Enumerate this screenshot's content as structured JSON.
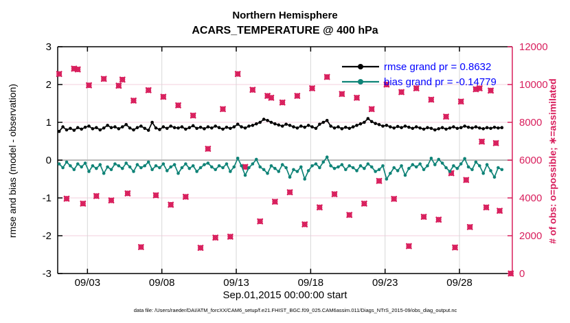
{
  "figure": {
    "footer": "data file: /Users/raeder/DAI/ATM_forcXX/CAM6_setup/f.e21.FHIST_BGC.f09_025.CAM6assim.011/Diags_NTrS_2015-09/obs_diag_output.nc"
  },
  "colors": {
    "rmse": "#000000",
    "bias": "#0f8377",
    "obs": "#d81e5c",
    "legend_text": "#0000ff",
    "grid_vertical": "#d7d7d7",
    "grid_horizontal": "#f3cfdd",
    "zero_line": "#b8b8b8",
    "axis_black": "#000000"
  },
  "chart_data": {
    "type": "line",
    "title": "Northern Hemisphere",
    "subtitle": "ACARS_TEMPERATURE @ 400 hPa",
    "xlabel": "Sep.01,2015 00:00:00 start",
    "ylabel_left": "rmse and bias (model - observation)",
    "ylabel_right": "# of obs: o=possible; ∗=assimilated",
    "x_axis": {
      "start_day": 0,
      "end_day": 30.55,
      "ticks": [
        {
          "day": 2,
          "label": "09/03"
        },
        {
          "day": 7,
          "label": "09/08"
        },
        {
          "day": 12,
          "label": "09/13"
        },
        {
          "day": 17,
          "label": "09/18"
        },
        {
          "day": 22,
          "label": "09/23"
        },
        {
          "day": 27,
          "label": "09/28"
        }
      ]
    },
    "y_left": {
      "min": -3,
      "max": 3,
      "ticks": [
        3,
        2,
        1,
        0,
        -1,
        -2,
        -3
      ]
    },
    "y_right": {
      "min": 0,
      "max": 12000,
      "ticks": [
        0,
        2000,
        4000,
        6000,
        8000,
        10000,
        12000
      ]
    },
    "grand_means": {
      "rmse": 0.8632,
      "bias": -0.14779
    },
    "legend": [
      {
        "label": "rmse grand pr = 0.8632",
        "series": "rmse"
      },
      {
        "label": "bias grand pr = -0.14779",
        "series": "bias"
      }
    ],
    "series": {
      "rmse": {
        "axis": "left",
        "x_start": 0.1,
        "x_step": 0.25,
        "values": [
          0.76,
          0.88,
          0.8,
          0.84,
          0.79,
          0.86,
          0.82,
          0.87,
          0.9,
          0.83,
          0.86,
          0.8,
          0.85,
          0.92,
          0.86,
          0.88,
          0.83,
          0.88,
          0.94,
          0.85,
          0.8,
          0.86,
          0.9,
          0.84,
          0.79,
          1.0,
          0.85,
          0.81,
          0.88,
          0.84,
          0.9,
          0.86,
          0.85,
          0.88,
          0.82,
          0.86,
          0.91,
          0.84,
          0.87,
          0.83,
          0.88,
          0.85,
          0.9,
          0.86,
          0.82,
          0.87,
          0.84,
          0.88,
          0.95,
          0.88,
          0.85,
          0.9,
          0.92,
          0.96,
          1.0,
          1.08,
          1.05,
          1.0,
          0.96,
          0.93,
          0.9,
          0.95,
          0.92,
          0.88,
          0.85,
          0.9,
          0.87,
          0.92,
          0.88,
          0.84,
          0.95,
          1.0,
          1.05,
          0.9,
          0.85,
          0.88,
          0.83,
          0.87,
          0.84,
          0.88,
          0.92,
          0.96,
          1.0,
          1.1,
          1.02,
          0.97,
          0.94,
          0.9,
          0.92,
          0.88,
          0.85,
          0.89,
          0.86,
          0.9,
          0.87,
          0.84,
          0.88,
          0.85,
          0.82,
          0.86,
          0.84,
          0.8,
          0.83,
          0.86,
          0.82,
          0.85,
          0.88,
          0.84,
          0.86,
          0.9,
          0.87,
          0.85,
          0.88,
          0.85,
          0.83,
          0.86,
          0.84,
          0.87,
          0.85,
          0.86
        ]
      },
      "bias": {
        "axis": "left",
        "x_start": 0.1,
        "x_step": 0.25,
        "values": [
          -0.1,
          -0.2,
          -0.05,
          -0.15,
          -0.25,
          -0.1,
          -0.18,
          -0.08,
          -0.3,
          -0.15,
          -0.22,
          -0.12,
          -0.35,
          -0.18,
          -0.25,
          -0.1,
          -0.15,
          -0.22,
          -0.08,
          -0.18,
          -0.3,
          -0.12,
          -0.2,
          -0.15,
          -0.05,
          -0.25,
          -0.15,
          -0.2,
          -0.1,
          -0.28,
          -0.18,
          -0.12,
          -0.35,
          -0.2,
          -0.1,
          -0.22,
          -0.15,
          -0.3,
          -0.2,
          -0.12,
          -0.08,
          -0.18,
          -0.25,
          -0.15,
          -0.2,
          -0.1,
          -0.3,
          -0.18,
          0.05,
          -0.15,
          -0.4,
          -0.2,
          -0.1,
          0.02,
          -0.18,
          -0.25,
          -0.35,
          -0.15,
          -0.22,
          -0.3,
          -0.12,
          -0.2,
          -0.45,
          -0.25,
          -0.3,
          -0.18,
          -0.5,
          -0.28,
          -0.15,
          -0.1,
          -0.2,
          -0.05,
          0.08,
          -0.15,
          -0.22,
          -0.18,
          -0.12,
          -0.25,
          -0.15,
          -0.2,
          -0.28,
          -0.15,
          -0.22,
          -0.1,
          -0.18,
          -0.3,
          -0.25,
          -0.15,
          -0.5,
          -0.35,
          -0.2,
          -0.28,
          -0.15,
          -0.4,
          -0.22,
          -0.12,
          -0.18,
          -0.1,
          -0.25,
          -0.15,
          0.05,
          -0.12,
          0.02,
          -0.08,
          -0.2,
          -0.3,
          -0.15,
          -0.22,
          -0.1,
          0.04,
          -0.18,
          -0.25,
          -0.05,
          -0.15,
          -0.35,
          -0.12,
          -0.28,
          -0.45,
          -0.2,
          -0.25
        ]
      },
      "obs_counts": {
        "axis": "right",
        "x": [
          0.1,
          0.6,
          1.1,
          1.35,
          1.7,
          2.1,
          2.6,
          3.1,
          3.6,
          4.1,
          4.35,
          4.7,
          5.1,
          5.6,
          6.1,
          6.6,
          7.1,
          7.6,
          8.1,
          8.6,
          9.1,
          9.6,
          10.1,
          10.6,
          11.1,
          11.6,
          12.1,
          12.6,
          13.1,
          13.6,
          14.1,
          14.35,
          14.6,
          15.1,
          15.6,
          16.1,
          16.6,
          17.1,
          17.6,
          18.1,
          18.6,
          19.1,
          19.6,
          20.1,
          20.6,
          21.1,
          21.6,
          22.1,
          22.6,
          23.1,
          23.6,
          24.1,
          24.6,
          25.1,
          25.6,
          26.1,
          26.45,
          26.7,
          27.1,
          27.45,
          27.7,
          28.1,
          28.35,
          28.5,
          28.8,
          29.1,
          29.45,
          29.7,
          30.45
        ],
        "possible": [
          10560,
          3960,
          10840,
          10800,
          3700,
          9960,
          4100,
          10300,
          3870,
          9940,
          10260,
          4240,
          9150,
          1400,
          9700,
          4140,
          9350,
          3640,
          8900,
          4060,
          8360,
          1360,
          6600,
          1900,
          8700,
          1950,
          10560,
          5640,
          9720,
          2760,
          9400,
          9300,
          3800,
          9050,
          4300,
          9400,
          2600,
          9800,
          3500,
          10400,
          4200,
          9500,
          3100,
          9300,
          3700,
          8700,
          4900,
          10000,
          3950,
          9600,
          1450,
          9800,
          3000,
          9200,
          2850,
          8300,
          5310,
          1380,
          9100,
          4950,
          2460,
          9750,
          9800,
          6980,
          3500,
          9680,
          6900,
          3320,
          0
        ],
        "assimilated": [
          10560,
          3960,
          10840,
          10800,
          3700,
          9960,
          4100,
          10300,
          3870,
          9940,
          10260,
          4240,
          9150,
          1400,
          9700,
          4140,
          9350,
          3640,
          8900,
          4060,
          8360,
          1360,
          6600,
          1900,
          8700,
          1950,
          10560,
          5640,
          9720,
          2760,
          9400,
          9300,
          3800,
          9050,
          4300,
          9400,
          2600,
          9800,
          3500,
          10400,
          4200,
          9500,
          3100,
          9300,
          3700,
          8700,
          4900,
          10000,
          3950,
          9600,
          1450,
          9800,
          3000,
          9200,
          2850,
          8300,
          5310,
          1380,
          9100,
          4950,
          2460,
          9750,
          9800,
          6980,
          3500,
          9680,
          6900,
          3320,
          0
        ]
      }
    }
  }
}
